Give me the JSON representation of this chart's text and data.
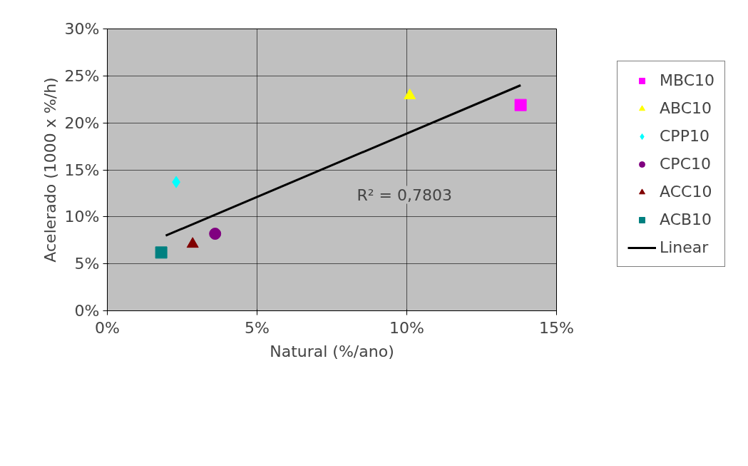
{
  "chart_data": {
    "type": "scatter",
    "xlabel": "Natural (%/ano)",
    "ylabel": "Acelerado (1000 x %/h)",
    "xlim": [
      0,
      15
    ],
    "ylim": [
      0,
      30
    ],
    "xticks": [
      {
        "value": 0,
        "label": "0%"
      },
      {
        "value": 5,
        "label": "5%"
      },
      {
        "value": 10,
        "label": "10%"
      },
      {
        "value": 15,
        "label": "15%"
      }
    ],
    "yticks": [
      {
        "value": 0,
        "label": "0%"
      },
      {
        "value": 5,
        "label": "5%"
      },
      {
        "value": 10,
        "label": "10%"
      },
      {
        "value": 15,
        "label": "15%"
      },
      {
        "value": 20,
        "label": "20%"
      },
      {
        "value": 25,
        "label": "25%"
      },
      {
        "value": 30,
        "label": "30%"
      }
    ],
    "grid": true,
    "legend": "right",
    "series": [
      {
        "name": "MBC10",
        "color": "#ff00ff",
        "marker": "square",
        "x": [
          13.8
        ],
        "values": [
          21.9
        ]
      },
      {
        "name": "ABC10",
        "color": "#ffff00",
        "marker": "triangle",
        "x": [
          10.1
        ],
        "values": [
          22.9
        ]
      },
      {
        "name": "CPP10",
        "color": "#00ffff",
        "marker": "diamond",
        "x": [
          2.3
        ],
        "values": [
          13.7
        ]
      },
      {
        "name": "CPC10",
        "color": "#800080",
        "marker": "circle",
        "x": [
          3.6
        ],
        "values": [
          8.2
        ]
      },
      {
        "name": "ACC10",
        "color": "#800000",
        "marker": "triangle",
        "x": [
          2.85
        ],
        "values": [
          7.1
        ]
      },
      {
        "name": "ACB10",
        "color": "#008080",
        "marker": "square",
        "x": [
          1.8
        ],
        "values": [
          6.2
        ]
      },
      {
        "name": "Linear",
        "type": "line",
        "color": "#000000",
        "marker": "none",
        "x": [
          1.95,
          13.8
        ],
        "values": [
          8.0,
          24.0
        ]
      }
    ],
    "annotations": [
      "R² = 0,7803"
    ]
  }
}
